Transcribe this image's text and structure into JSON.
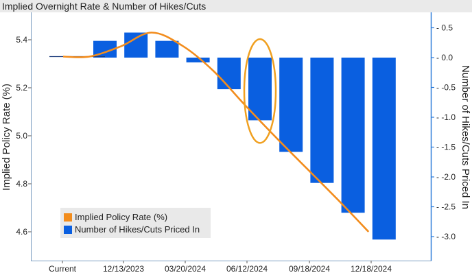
{
  "chart_data": {
    "type": "bar+line",
    "title": "Implied Overnight Rate & Number of Hikes/Cuts",
    "x_tick_labels": [
      "Current",
      "12/13/2023",
      "03/20/2024",
      "06/12/2024",
      "09/18/2024",
      "12/18/2024"
    ],
    "bars": {
      "name": "Number of Hikes/Cuts Priced In",
      "color": "#0a5fe0",
      "values": [
        0.28,
        0.42,
        0.28,
        -0.08,
        -0.53,
        -1.05,
        -1.58,
        -2.1,
        -2.6,
        -3.05
      ]
    },
    "line": {
      "name": "Implied Policy Rate (%)",
      "color": "#f28c1c",
      "points": [
        {
          "i": -0.5,
          "y": 5.33
        },
        {
          "i": 0.5,
          "y": 5.372
        },
        {
          "i": 1.5,
          "y": 5.43
        },
        {
          "i": 2.5,
          "y": 5.375
        },
        {
          "i": 3.5,
          "y": 5.27
        },
        {
          "i": 4.5,
          "y": 5.13
        },
        {
          "i": 5.5,
          "y": 4.995
        },
        {
          "i": 6.5,
          "y": 4.865
        },
        {
          "i": 7.5,
          "y": 4.735
        },
        {
          "i": 8.5,
          "y": 4.6
        }
      ]
    },
    "current_marker": {
      "y_rate": 5.33
    },
    "y_left": {
      "label": "Implied Policy Rate (%)",
      "ticks": [
        4.6,
        4.8,
        5.0,
        5.2,
        5.4
      ]
    },
    "y_right": {
      "label": "Number of Hikes/Cuts Priced In",
      "ticks": [
        "0.5",
        "0.0",
        "-0.5",
        "-1.0",
        "-1.5",
        "-2.0",
        "-2.5",
        "-3.0"
      ]
    },
    "legend": {
      "placement": "bottom-left",
      "line_label": "Implied Policy Rate (%)",
      "bar_label": "Number of Hikes/Cuts Priced In"
    },
    "highlight": {
      "bar_index": 5,
      "color": "#f0a020"
    }
  }
}
